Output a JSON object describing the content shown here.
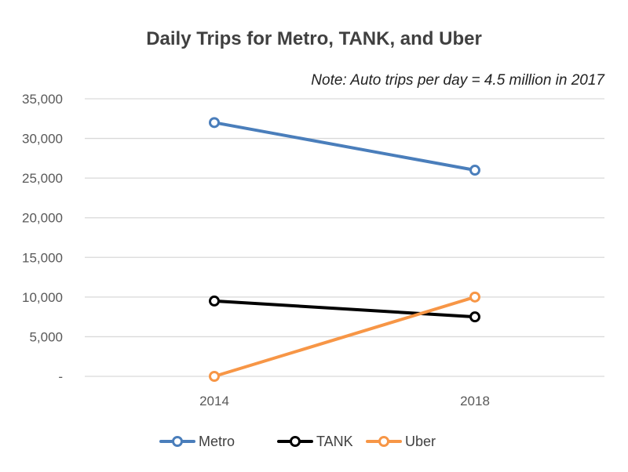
{
  "chart_data": {
    "type": "line",
    "title": "Daily Trips for Metro, TANK, and Uber",
    "annotation": "Note: Auto trips per day = 4.5 million in 2017",
    "xlabel": "",
    "ylabel": "",
    "categories": [
      "2014",
      "2018"
    ],
    "ylim": [
      0,
      35000
    ],
    "yticks": [
      0,
      5000,
      10000,
      15000,
      20000,
      25000,
      30000,
      35000
    ],
    "ytick_labels": [
      "-",
      "5,000",
      "10,000",
      "15,000",
      "20,000",
      "25,000",
      "30,000",
      "35,000"
    ],
    "grid": true,
    "legend_position": "bottom",
    "series": [
      {
        "name": "Metro",
        "values": [
          32000,
          26000
        ],
        "color": "#4a7ebb"
      },
      {
        "name": "TANK",
        "values": [
          9500,
          7500
        ],
        "color": "#000000"
      },
      {
        "name": "Uber",
        "values": [
          0,
          10000
        ],
        "color": "#f79646"
      }
    ]
  }
}
